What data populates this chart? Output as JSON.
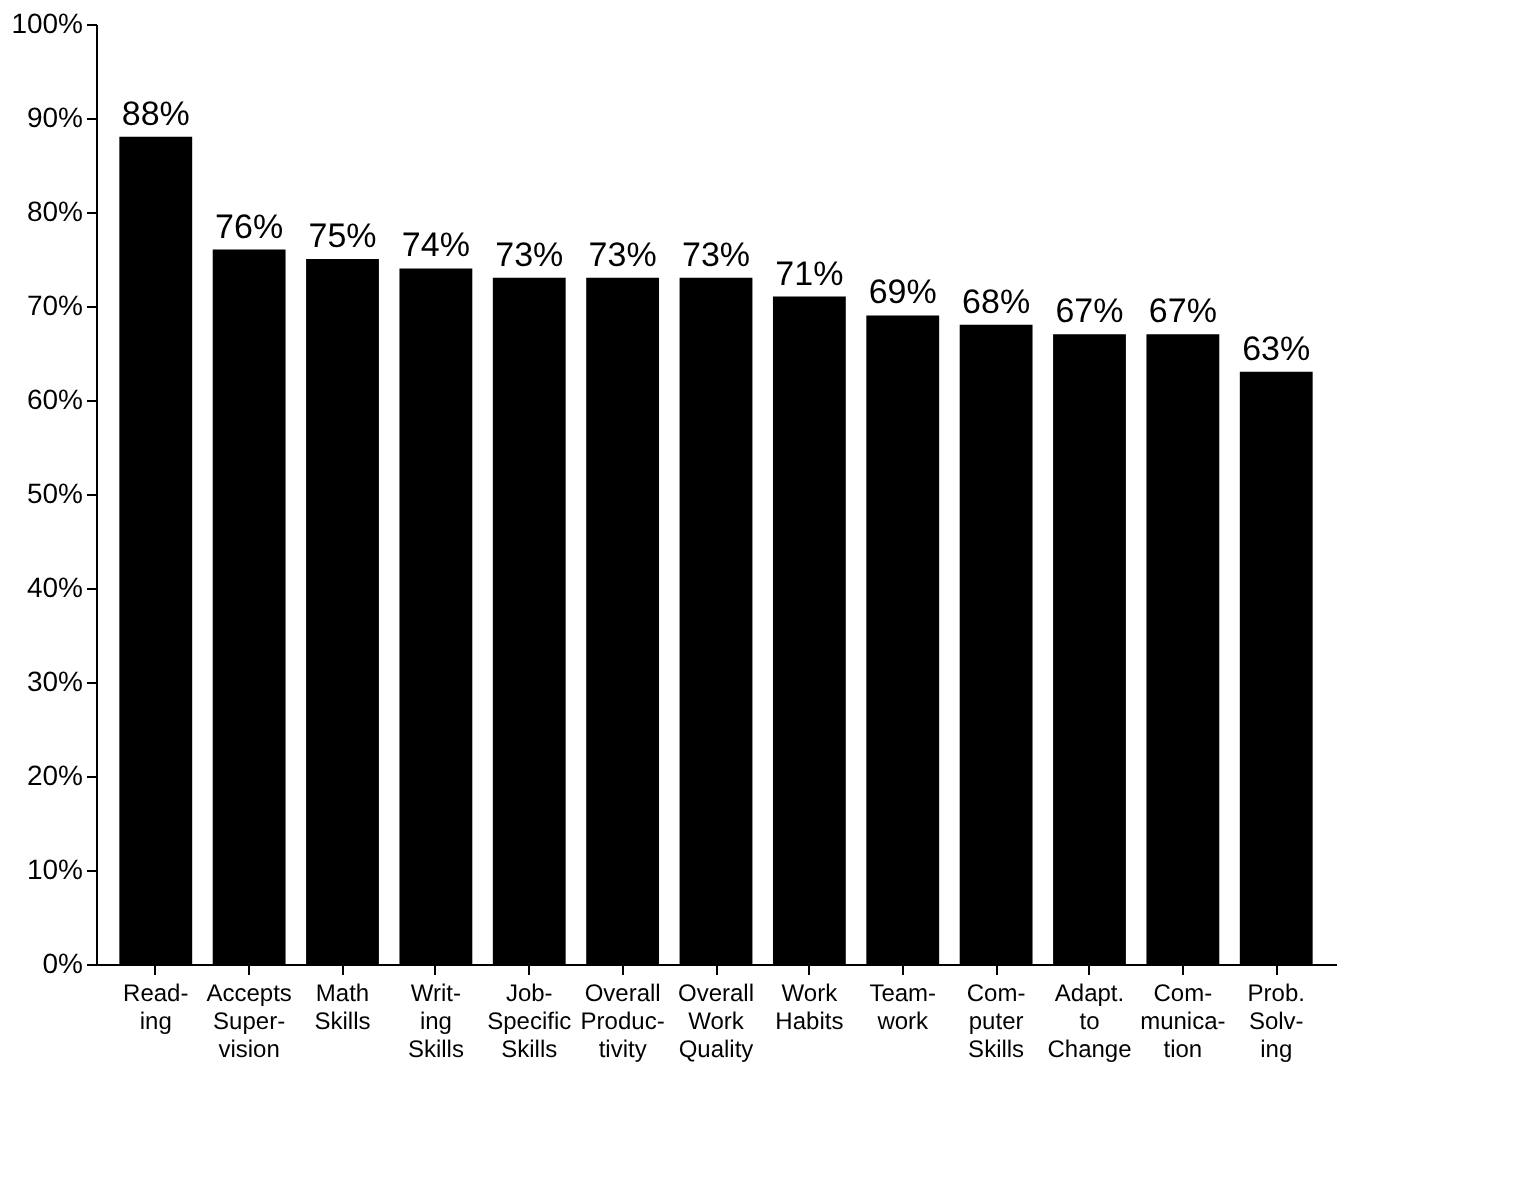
{
  "chart_data": {
    "type": "bar",
    "categories": [
      "Read-\ning",
      "Accepts\nSuper-\nvision",
      "Math\nSkills",
      "Writ-\ning\nSkills",
      "Job-\nSpecific\nSkills",
      "Overall\nProduc-\ntivity",
      "Overall\nWork\nQuality",
      "Work\nHabits",
      "Team-\nwork",
      "Com-\nputer\nSkills",
      "Adapt.\nto\nChange",
      "Com-\nmunica-\ntion",
      "Prob.\nSolv-\ning"
    ],
    "values": [
      88,
      76,
      75,
      74,
      73,
      73,
      73,
      71,
      69,
      68,
      67,
      67,
      63
    ],
    "value_labels": [
      "88%",
      "76%",
      "75%",
      "74%",
      "73%",
      "73%",
      "73%",
      "71%",
      "69%",
      "68%",
      "67%",
      "67%",
      "63%"
    ],
    "color": "#000000",
    "ylim": [
      0,
      100
    ],
    "yticks": [
      {
        "value": 0,
        "label": "0%"
      },
      {
        "value": 10,
        "label": "10%"
      },
      {
        "value": 20,
        "label": "20%"
      },
      {
        "value": 30,
        "label": "30%"
      },
      {
        "value": 40,
        "label": "40%"
      },
      {
        "value": 50,
        "label": "50%"
      },
      {
        "value": 60,
        "label": "60%"
      },
      {
        "value": 70,
        "label": "70%"
      },
      {
        "value": 80,
        "label": "80%"
      },
      {
        "value": 90,
        "label": "90%"
      },
      {
        "value": 100,
        "label": "100%"
      }
    ],
    "grid": false
  }
}
